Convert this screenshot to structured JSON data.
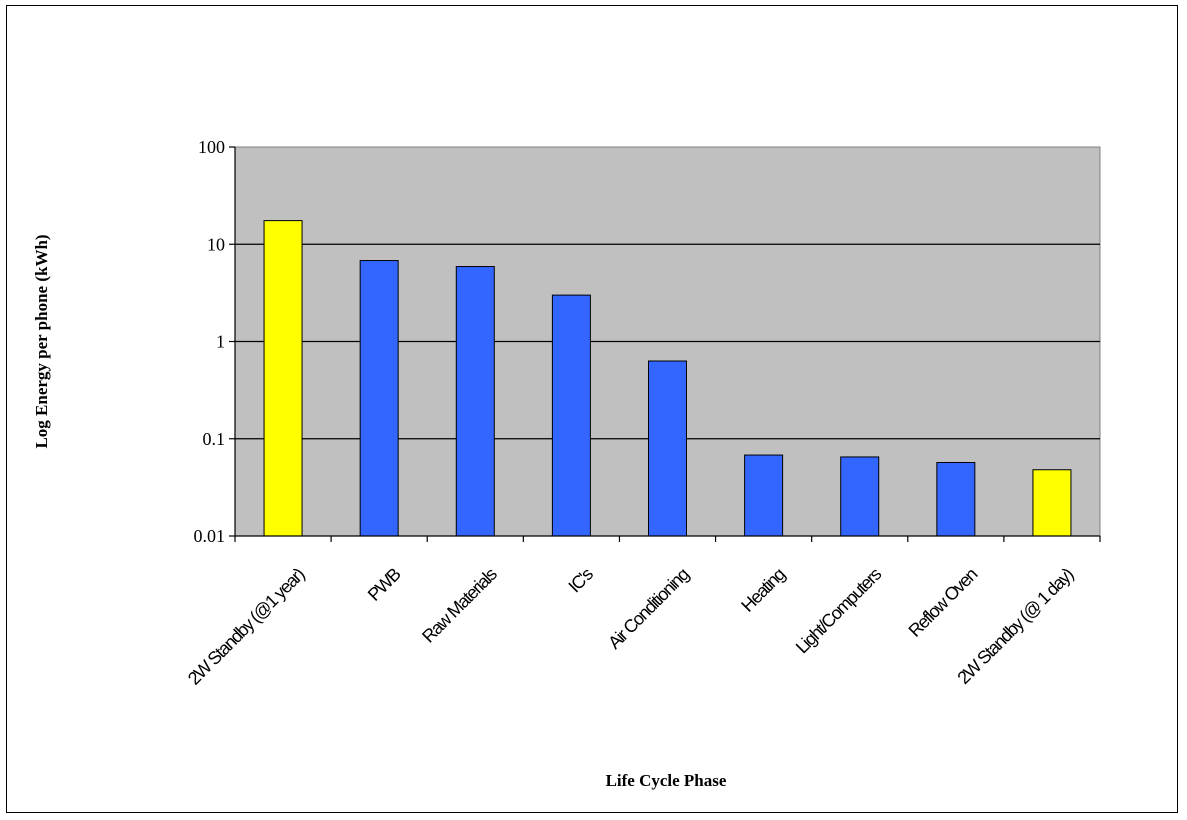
{
  "chart_data": {
    "type": "bar",
    "title": "",
    "xlabel": "Life Cycle Phase",
    "ylabel": "Log Energy per phone (kWh)",
    "yscale": "log",
    "ylim": [
      0.01,
      100
    ],
    "yticks": [
      "0.01",
      "0.1",
      "1",
      "10",
      "100"
    ],
    "ytick_values": [
      0.01,
      0.1,
      1,
      10,
      100
    ],
    "grid": true,
    "plot_background": "#C0C0C0",
    "categories": [
      "2W Standby (@1 year)",
      "PWB",
      "Raw Materials",
      "IC's",
      "Air Conditioning",
      "Heating",
      "Light/Computers",
      "Reflow Oven",
      "2W Standby (@ 1 day)"
    ],
    "values": [
      17.5,
      6.8,
      5.9,
      3.0,
      0.63,
      0.068,
      0.065,
      0.057,
      0.048
    ],
    "colors": [
      "#FFFF00",
      "#3366FF",
      "#3366FF",
      "#3366FF",
      "#3366FF",
      "#3366FF",
      "#3366FF",
      "#3366FF",
      "#FFFF00"
    ]
  }
}
